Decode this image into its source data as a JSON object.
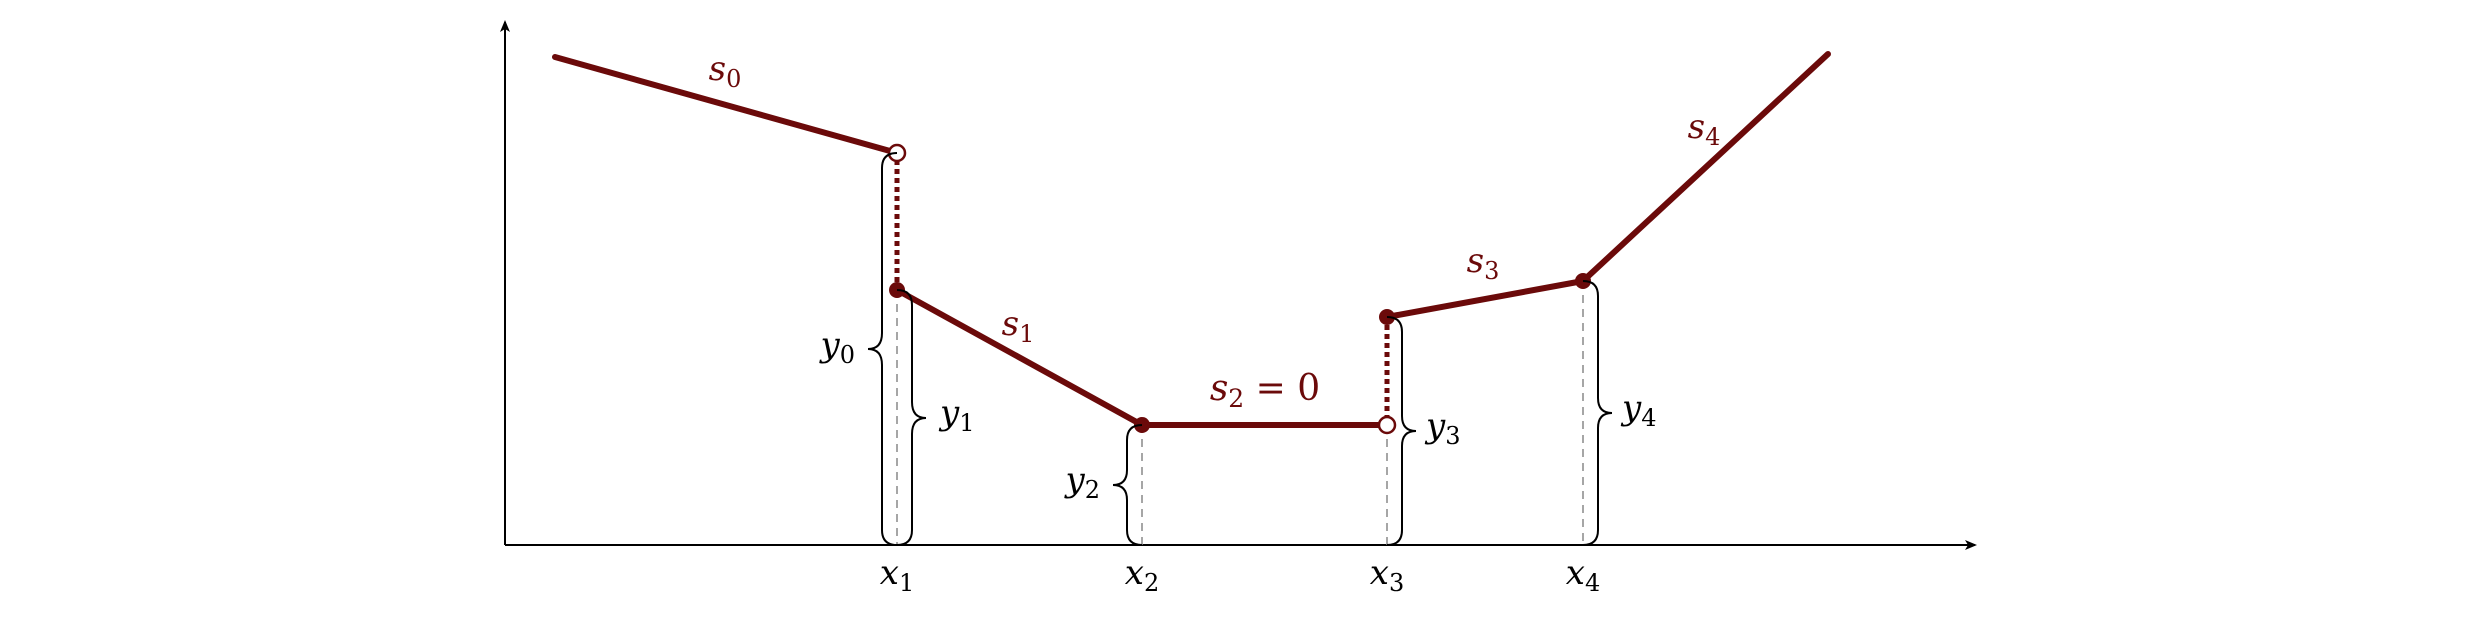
{
  "colors": {
    "segment": "#6b0a0a",
    "axis": "#000000",
    "guide": "#888888",
    "brace": "#000000",
    "label": "#000000"
  },
  "x_labels": [
    {
      "base": "x",
      "sub": "1"
    },
    {
      "base": "x",
      "sub": "2"
    },
    {
      "base": "x",
      "sub": "3"
    },
    {
      "base": "x",
      "sub": "4"
    }
  ],
  "y_labels": [
    {
      "base": "y",
      "sub": "0"
    },
    {
      "base": "y",
      "sub": "1"
    },
    {
      "base": "y",
      "sub": "2"
    },
    {
      "base": "y",
      "sub": "3"
    },
    {
      "base": "y",
      "sub": "4"
    }
  ],
  "segment_labels": [
    {
      "base": "s",
      "sub": "0",
      "suffix": ""
    },
    {
      "base": "s",
      "sub": "1",
      "suffix": ""
    },
    {
      "base": "s",
      "sub": "2",
      "suffix": " = 0"
    },
    {
      "base": "s",
      "sub": "3",
      "suffix": ""
    },
    {
      "base": "s",
      "sub": "4",
      "suffix": ""
    }
  ]
}
